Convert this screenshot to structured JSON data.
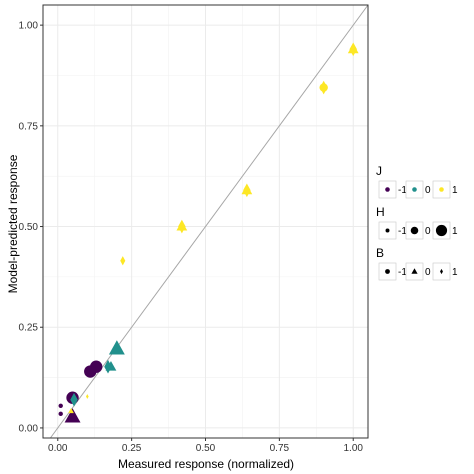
{
  "chart_data": {
    "type": "scatter",
    "xlabel": "Measured response (normalized)",
    "ylabel": "Model-predicted response",
    "xlim": [
      -0.05,
      1.05
    ],
    "ylim": [
      -0.025,
      1.05
    ],
    "x_ticks": [
      "0.00",
      "0.25",
      "0.50",
      "0.75",
      "1.00"
    ],
    "y_ticks": [
      "0.00",
      "0.25",
      "0.50",
      "0.75",
      "1.00"
    ],
    "grid": true,
    "reference_line": "y = x",
    "legend_position": "right",
    "colors": {
      "-1": "#440154",
      "0": "#21908c",
      "1": "#fde725"
    },
    "legends": [
      {
        "title": "J",
        "kind": "color",
        "entries": [
          "-1",
          "0",
          "1"
        ]
      },
      {
        "title": "H",
        "kind": "size",
        "entries": [
          "-1",
          "0",
          "1"
        ]
      },
      {
        "title": "B",
        "kind": "shape",
        "entries": [
          "-1",
          "0",
          "1"
        ]
      }
    ],
    "points": [
      {
        "x": 1.0,
        "y": 0.94,
        "J": 1,
        "H": 1,
        "B": 1
      },
      {
        "x": 1.0,
        "y": 0.94,
        "J": 1,
        "H": 0,
        "B": 0
      },
      {
        "x": 0.9,
        "y": 0.845,
        "J": 1,
        "H": 1,
        "B": 1
      },
      {
        "x": 0.9,
        "y": 0.845,
        "J": 1,
        "H": 0,
        "B": -1
      },
      {
        "x": 0.64,
        "y": 0.59,
        "J": 1,
        "H": 1,
        "B": 1
      },
      {
        "x": 0.64,
        "y": 0.59,
        "J": 1,
        "H": 0,
        "B": 0
      },
      {
        "x": 0.42,
        "y": 0.5,
        "J": 1,
        "H": 1,
        "B": 1
      },
      {
        "x": 0.42,
        "y": 0.5,
        "J": 1,
        "H": 0,
        "B": 0
      },
      {
        "x": 0.22,
        "y": 0.415,
        "J": 1,
        "H": 0,
        "B": 1
      },
      {
        "x": 0.2,
        "y": 0.197,
        "J": 0,
        "H": 1,
        "B": 0
      },
      {
        "x": 0.17,
        "y": 0.152,
        "J": 0,
        "H": 1,
        "B": 1
      },
      {
        "x": 0.18,
        "y": 0.152,
        "J": 0,
        "H": 0,
        "B": 0
      },
      {
        "x": 0.13,
        "y": 0.152,
        "J": -1,
        "H": 1,
        "B": -1
      },
      {
        "x": 0.11,
        "y": 0.14,
        "J": -1,
        "H": 1,
        "B": -1
      },
      {
        "x": 0.05,
        "y": 0.075,
        "J": -1,
        "H": 1,
        "B": -1
      },
      {
        "x": 0.055,
        "y": 0.07,
        "J": 0,
        "H": 1,
        "B": 1
      },
      {
        "x": 0.1,
        "y": 0.078,
        "J": 1,
        "H": -1,
        "B": 1
      },
      {
        "x": 0.05,
        "y": 0.028,
        "J": -1,
        "H": 1,
        "B": 0
      },
      {
        "x": 0.045,
        "y": 0.042,
        "J": 1,
        "H": -1,
        "B": 0
      },
      {
        "x": 0.01,
        "y": 0.055,
        "J": -1,
        "H": -1,
        "B": -1
      },
      {
        "x": 0.01,
        "y": 0.035,
        "J": -1,
        "H": -1,
        "B": -1
      }
    ]
  }
}
